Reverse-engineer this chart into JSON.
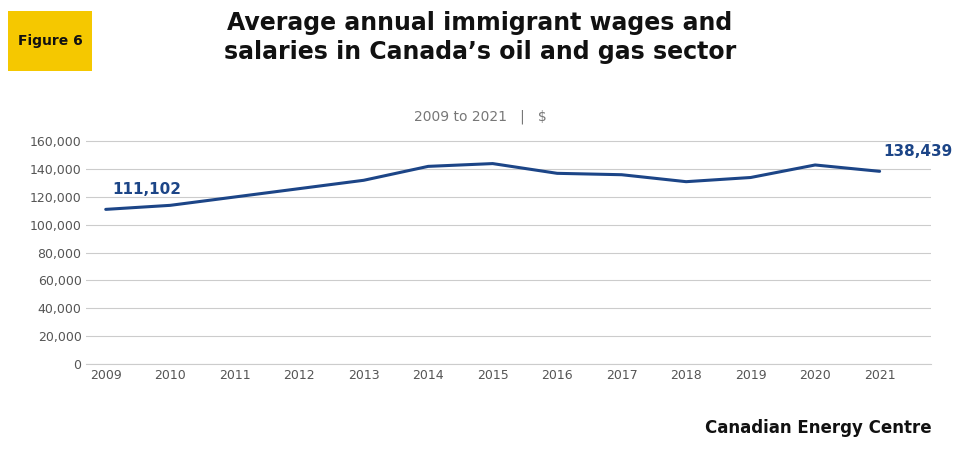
{
  "title_line1": "Average annual immigrant wages and",
  "title_line2": "salaries in Canada’s oil and gas sector",
  "subtitle": "2009 to 2021   |   $",
  "figure_label": "Figure 6",
  "branding": "Canadian Energy Centre",
  "years": [
    2009,
    2010,
    2011,
    2012,
    2013,
    2014,
    2015,
    2016,
    2017,
    2018,
    2019,
    2020,
    2021
  ],
  "values": [
    111102,
    114000,
    120000,
    126000,
    132000,
    142000,
    144000,
    137000,
    136000,
    131000,
    134000,
    143000,
    138439
  ],
  "line_color": "#1c4587",
  "label_first_value": "111,102",
  "label_last_value": "138,439",
  "ylim": [
    0,
    170000
  ],
  "yticks": [
    0,
    20000,
    40000,
    60000,
    80000,
    100000,
    120000,
    140000,
    160000
  ],
  "background_color": "#ffffff",
  "grid_color": "#cccccc",
  "figure_label_bg": "#f5c800",
  "title_fontsize": 17,
  "subtitle_fontsize": 10,
  "tick_fontsize": 9,
  "label_fontsize": 10
}
